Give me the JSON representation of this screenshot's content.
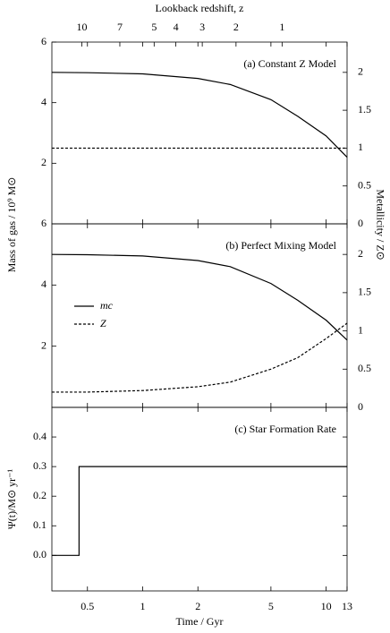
{
  "chart_data": [
    {
      "type": "line",
      "title": "(a) Constant Z Model",
      "ylabel": "Mass of gas / 10⁹ M⊙",
      "y2label": "Metallicity / Z⊙",
      "x2label": "Lookback redshift, z",
      "x2ticks": [
        10,
        7,
        5,
        4,
        3,
        2,
        1
      ],
      "xscale": "log",
      "xlim": [
        0.32,
        13
      ],
      "x": [
        0.32,
        0.5,
        1,
        2,
        3,
        5,
        7,
        10,
        13
      ],
      "series": [
        {
          "color": "#000000",
          "style": "solid",
          "values": [
            5.0,
            4.99,
            4.95,
            4.8,
            4.6,
            4.1,
            3.55,
            2.9,
            2.2
          ]
        },
        {
          "color": "#000000",
          "style": "dashed",
          "axis": "y2",
          "values": [
            1,
            1,
            1,
            1,
            1,
            1,
            1,
            1,
            1
          ]
        }
      ],
      "ylim": [
        0,
        6
      ],
      "yticks": [
        2,
        4,
        6
      ],
      "y2lim": [
        0,
        2.4
      ],
      "y2ticks": [
        0,
        0.5,
        1,
        1.5,
        2
      ]
    },
    {
      "type": "line",
      "title": "(b) Perfect Mixing Model",
      "xscale": "log",
      "xlim": [
        0.32,
        13
      ],
      "x": [
        0.32,
        0.5,
        1,
        2,
        3,
        5,
        7,
        10,
        13
      ],
      "series": [
        {
          "name": "mc",
          "color": "#000000",
          "style": "solid",
          "values": [
            5.0,
            4.99,
            4.95,
            4.8,
            4.6,
            4.05,
            3.5,
            2.85,
            2.2
          ]
        },
        {
          "name": "Z",
          "color": "#000000",
          "style": "dashed",
          "axis": "y2",
          "values": [
            0.2,
            0.2,
            0.22,
            0.27,
            0.33,
            0.5,
            0.65,
            0.9,
            1.1
          ]
        }
      ],
      "ylim": [
        0,
        6
      ],
      "yticks": [
        2,
        4,
        6
      ],
      "y2lim": [
        0,
        2.4
      ],
      "y2ticks": [
        0,
        0.5,
        1,
        1.5,
        2
      ]
    },
    {
      "type": "line",
      "title": "(c) Star Formation Rate",
      "ylabel": "Ψ(t)/M⊙ yr⁻¹",
      "xlabel": "Time / Gyr",
      "xscale": "log",
      "xlim": [
        0.32,
        13
      ],
      "xticks": [
        0.5,
        1,
        2,
        5,
        10,
        13
      ],
      "x": [
        0.32,
        0.45,
        0.45,
        13
      ],
      "series": [
        {
          "color": "#000000",
          "style": "solid",
          "values": [
            0,
            0,
            0.3,
            0.3
          ]
        }
      ],
      "ylim": [
        -0.12,
        0.5
      ],
      "yticks": [
        {
          "value": 0,
          "label": "0.0"
        },
        {
          "value": 0.1,
          "label": "0.1"
        },
        {
          "value": 0.2,
          "label": "0.2"
        },
        {
          "value": 0.3,
          "label": "0.3"
        },
        {
          "value": 0.4,
          "label": "0.4"
        }
      ]
    }
  ]
}
